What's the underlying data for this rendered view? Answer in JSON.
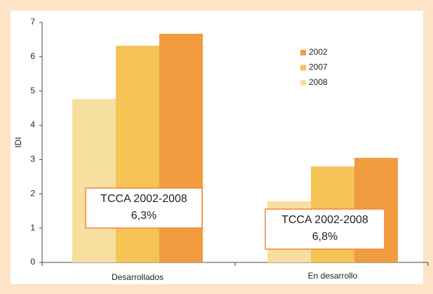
{
  "chart_data": {
    "type": "bar",
    "y_label": "IDI",
    "categories": [
      "Desarrollados",
      "En desarrollo"
    ],
    "series": [
      {
        "name": "2002",
        "color": "#f19c3e",
        "values": [
          6.67,
          3.05
        ]
      },
      {
        "name": "2007",
        "color": "#f5c356",
        "values": [
          6.32,
          2.8
        ]
      },
      {
        "name": "2008",
        "color": "#f7dfa0",
        "values": [
          4.77,
          1.78
        ]
      }
    ],
    "ylim": [
      0,
      7
    ],
    "yticks": [
      0,
      1,
      2,
      3,
      4,
      5,
      6,
      7
    ],
    "annotations": [
      [
        "TCCA 2002-2008",
        "6,3%"
      ],
      [
        "TCCA 2002-2008",
        "6,8%"
      ]
    ]
  }
}
